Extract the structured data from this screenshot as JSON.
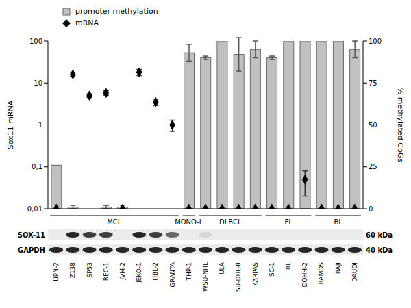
{
  "chart_data": {
    "type": "bar",
    "categories": [
      "UPN-2",
      "Z138",
      "SP53",
      "REC-1",
      "JVM-2",
      "JEKO-1",
      "HBL-2",
      "GRANTA",
      "THP-1",
      "WSU-NHL",
      "ULA",
      "SU-DHL-8",
      "KARPAS",
      "SC-1",
      "RL",
      "DOHH-2",
      "RAMOS",
      "RAJI",
      "DAUDI"
    ],
    "series": [
      {
        "name": "promoter methylation",
        "type": "bar",
        "color": "#c0c0c0",
        "axis": "y2",
        "values": [
          26,
          1,
          0,
          1,
          1,
          0,
          0,
          0,
          93,
          90,
          100,
          92,
          95,
          90,
          100,
          100,
          100,
          100,
          95
        ],
        "errors": [
          0,
          1,
          0,
          1,
          1,
          0,
          0,
          0,
          5,
          1,
          0,
          10,
          5,
          1,
          0,
          0,
          0,
          0,
          5
        ]
      },
      {
        "name": "mRNA",
        "type": "scatter",
        "marker": "diamond",
        "color": "#000000",
        "values": [
          0.01,
          16,
          5,
          5.8,
          0.01,
          18,
          3.5,
          1.0,
          0.01,
          0.01,
          0.01,
          0.01,
          0.01,
          0.01,
          0.01,
          0.05,
          0.01,
          0.01,
          0.01
        ],
        "errors": [
          0,
          1.5,
          0.5,
          0.7,
          0,
          3,
          0.6,
          0.3,
          0,
          0,
          0,
          0,
          0,
          0,
          0,
          0.03,
          0,
          0,
          0
        ]
      }
    ],
    "log": "y",
    "ylim": [
      0.01,
      100
    ],
    "yticks": [
      {
        "value": 0.01,
        "label": "0,01"
      },
      {
        "value": 0.1,
        "label": "0,1"
      },
      1,
      10,
      100
    ],
    "y2lim": [
      0,
      100
    ],
    "y2ticks": [
      0,
      25,
      50,
      75,
      100
    ],
    "ylabel": "Sox11 mRNA",
    "y2label": "% methylated CpGs",
    "grid": false,
    "legend": "top-left",
    "groups": [
      {
        "label": "MCL",
        "count": 8
      },
      {
        "label": "MONO-L",
        "count": 1
      },
      {
        "label": "DLBCL",
        "count": 4
      },
      {
        "label": "FL",
        "count": 3
      },
      {
        "label": "BL",
        "count": 3
      }
    ],
    "blot": [
      {
        "label": "SOX-11",
        "size": "60 kDa",
        "intensity": [
          0,
          0.9,
          0.8,
          0.8,
          0,
          0.9,
          0.8,
          0.6,
          0,
          0.1,
          0,
          0,
          0,
          0,
          0,
          0,
          0,
          0,
          0
        ]
      },
      {
        "label": "GAPDH",
        "size": "40 kDa",
        "intensity": [
          0.9,
          0.9,
          0.9,
          0.9,
          0.9,
          0.9,
          0.9,
          0.9,
          0.9,
          0.9,
          0.9,
          0.9,
          0.9,
          0.9,
          0.9,
          0.9,
          0.9,
          0.9,
          0.9
        ]
      }
    ]
  }
}
